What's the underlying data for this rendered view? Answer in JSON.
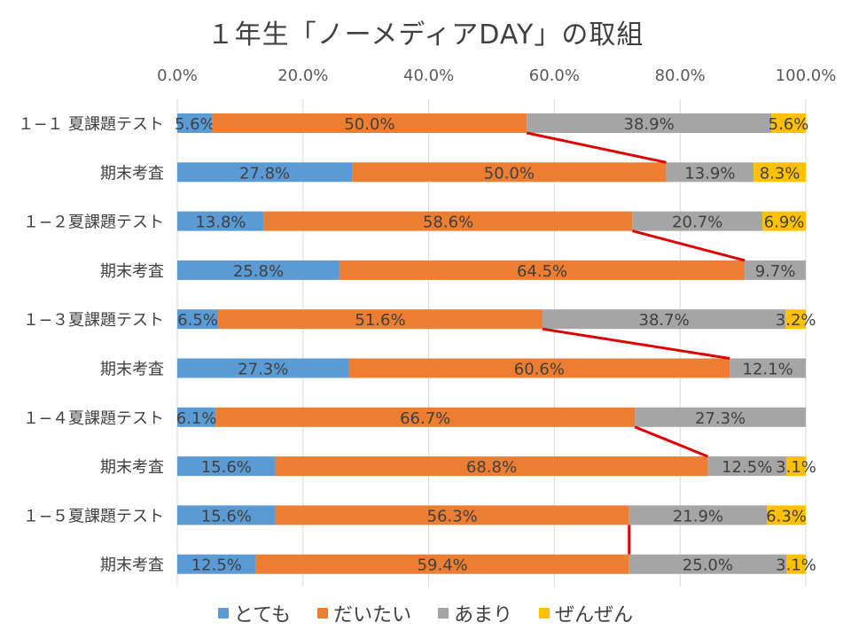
{
  "chart_data": {
    "type": "bar",
    "orientation": "horizontal",
    "stacked": "percent",
    "title": "１年生「ノーメディアDAY」の取組",
    "xlim": [
      0,
      100
    ],
    "xtick_labels": [
      "0.0%",
      "20.0%",
      "40.0%",
      "60.0%",
      "80.0%",
      "100.0%"
    ],
    "xtick_values": [
      0,
      20,
      40,
      60,
      80,
      100
    ],
    "grid": true,
    "legend_position": "bottom",
    "categories": [
      "１−１ 夏課題テスト",
      "期末考査",
      "１−２夏課題テスト",
      "期末考査",
      "１−３夏課題テスト",
      "期末考査",
      "１−４夏課題テスト",
      "期末考査",
      "１−５夏課題テスト",
      "期末考査"
    ],
    "series": [
      {
        "name": "とても",
        "color": "#5B9BD5",
        "values": [
          5.6,
          27.8,
          13.8,
          25.8,
          6.5,
          27.3,
          6.1,
          15.6,
          15.6,
          12.5
        ],
        "labels": [
          "5.6%",
          "27.8%",
          "13.8%",
          "25.8%",
          "6.5%",
          "27.3%",
          "6.1%",
          "15.6%",
          "15.6%",
          "12.5%"
        ]
      },
      {
        "name": "だいたい",
        "color": "#ED7D31",
        "values": [
          50.0,
          50.0,
          58.6,
          64.5,
          51.6,
          60.6,
          66.7,
          68.8,
          56.3,
          59.4
        ],
        "labels": [
          "50.0%",
          "50.0%",
          "58.6%",
          "64.5%",
          "51.6%",
          "60.6%",
          "66.7%",
          "68.8%",
          "56.3%",
          "59.4%"
        ]
      },
      {
        "name": "あまり",
        "color": "#A5A5A5",
        "values": [
          38.9,
          13.9,
          20.7,
          9.7,
          38.7,
          12.1,
          27.3,
          12.5,
          21.9,
          25.0
        ],
        "labels": [
          "38.9%",
          "13.9%",
          "20.7%",
          "9.7%",
          "38.7%",
          "12.1%",
          "27.3%",
          "12.5%",
          "21.9%",
          "25.0%"
        ]
      },
      {
        "name": "ぜんぜん",
        "color": "#FFC000",
        "values": [
          5.6,
          8.3,
          6.9,
          0,
          3.2,
          0,
          0,
          3.1,
          6.3,
          3.1
        ],
        "labels": [
          "5.6%",
          "8.3%",
          "6.9%",
          "",
          "3.2%",
          "",
          "",
          "3.1%",
          "6.3%",
          "3.1%"
        ]
      }
    ],
    "connector_color": "#E00000"
  }
}
